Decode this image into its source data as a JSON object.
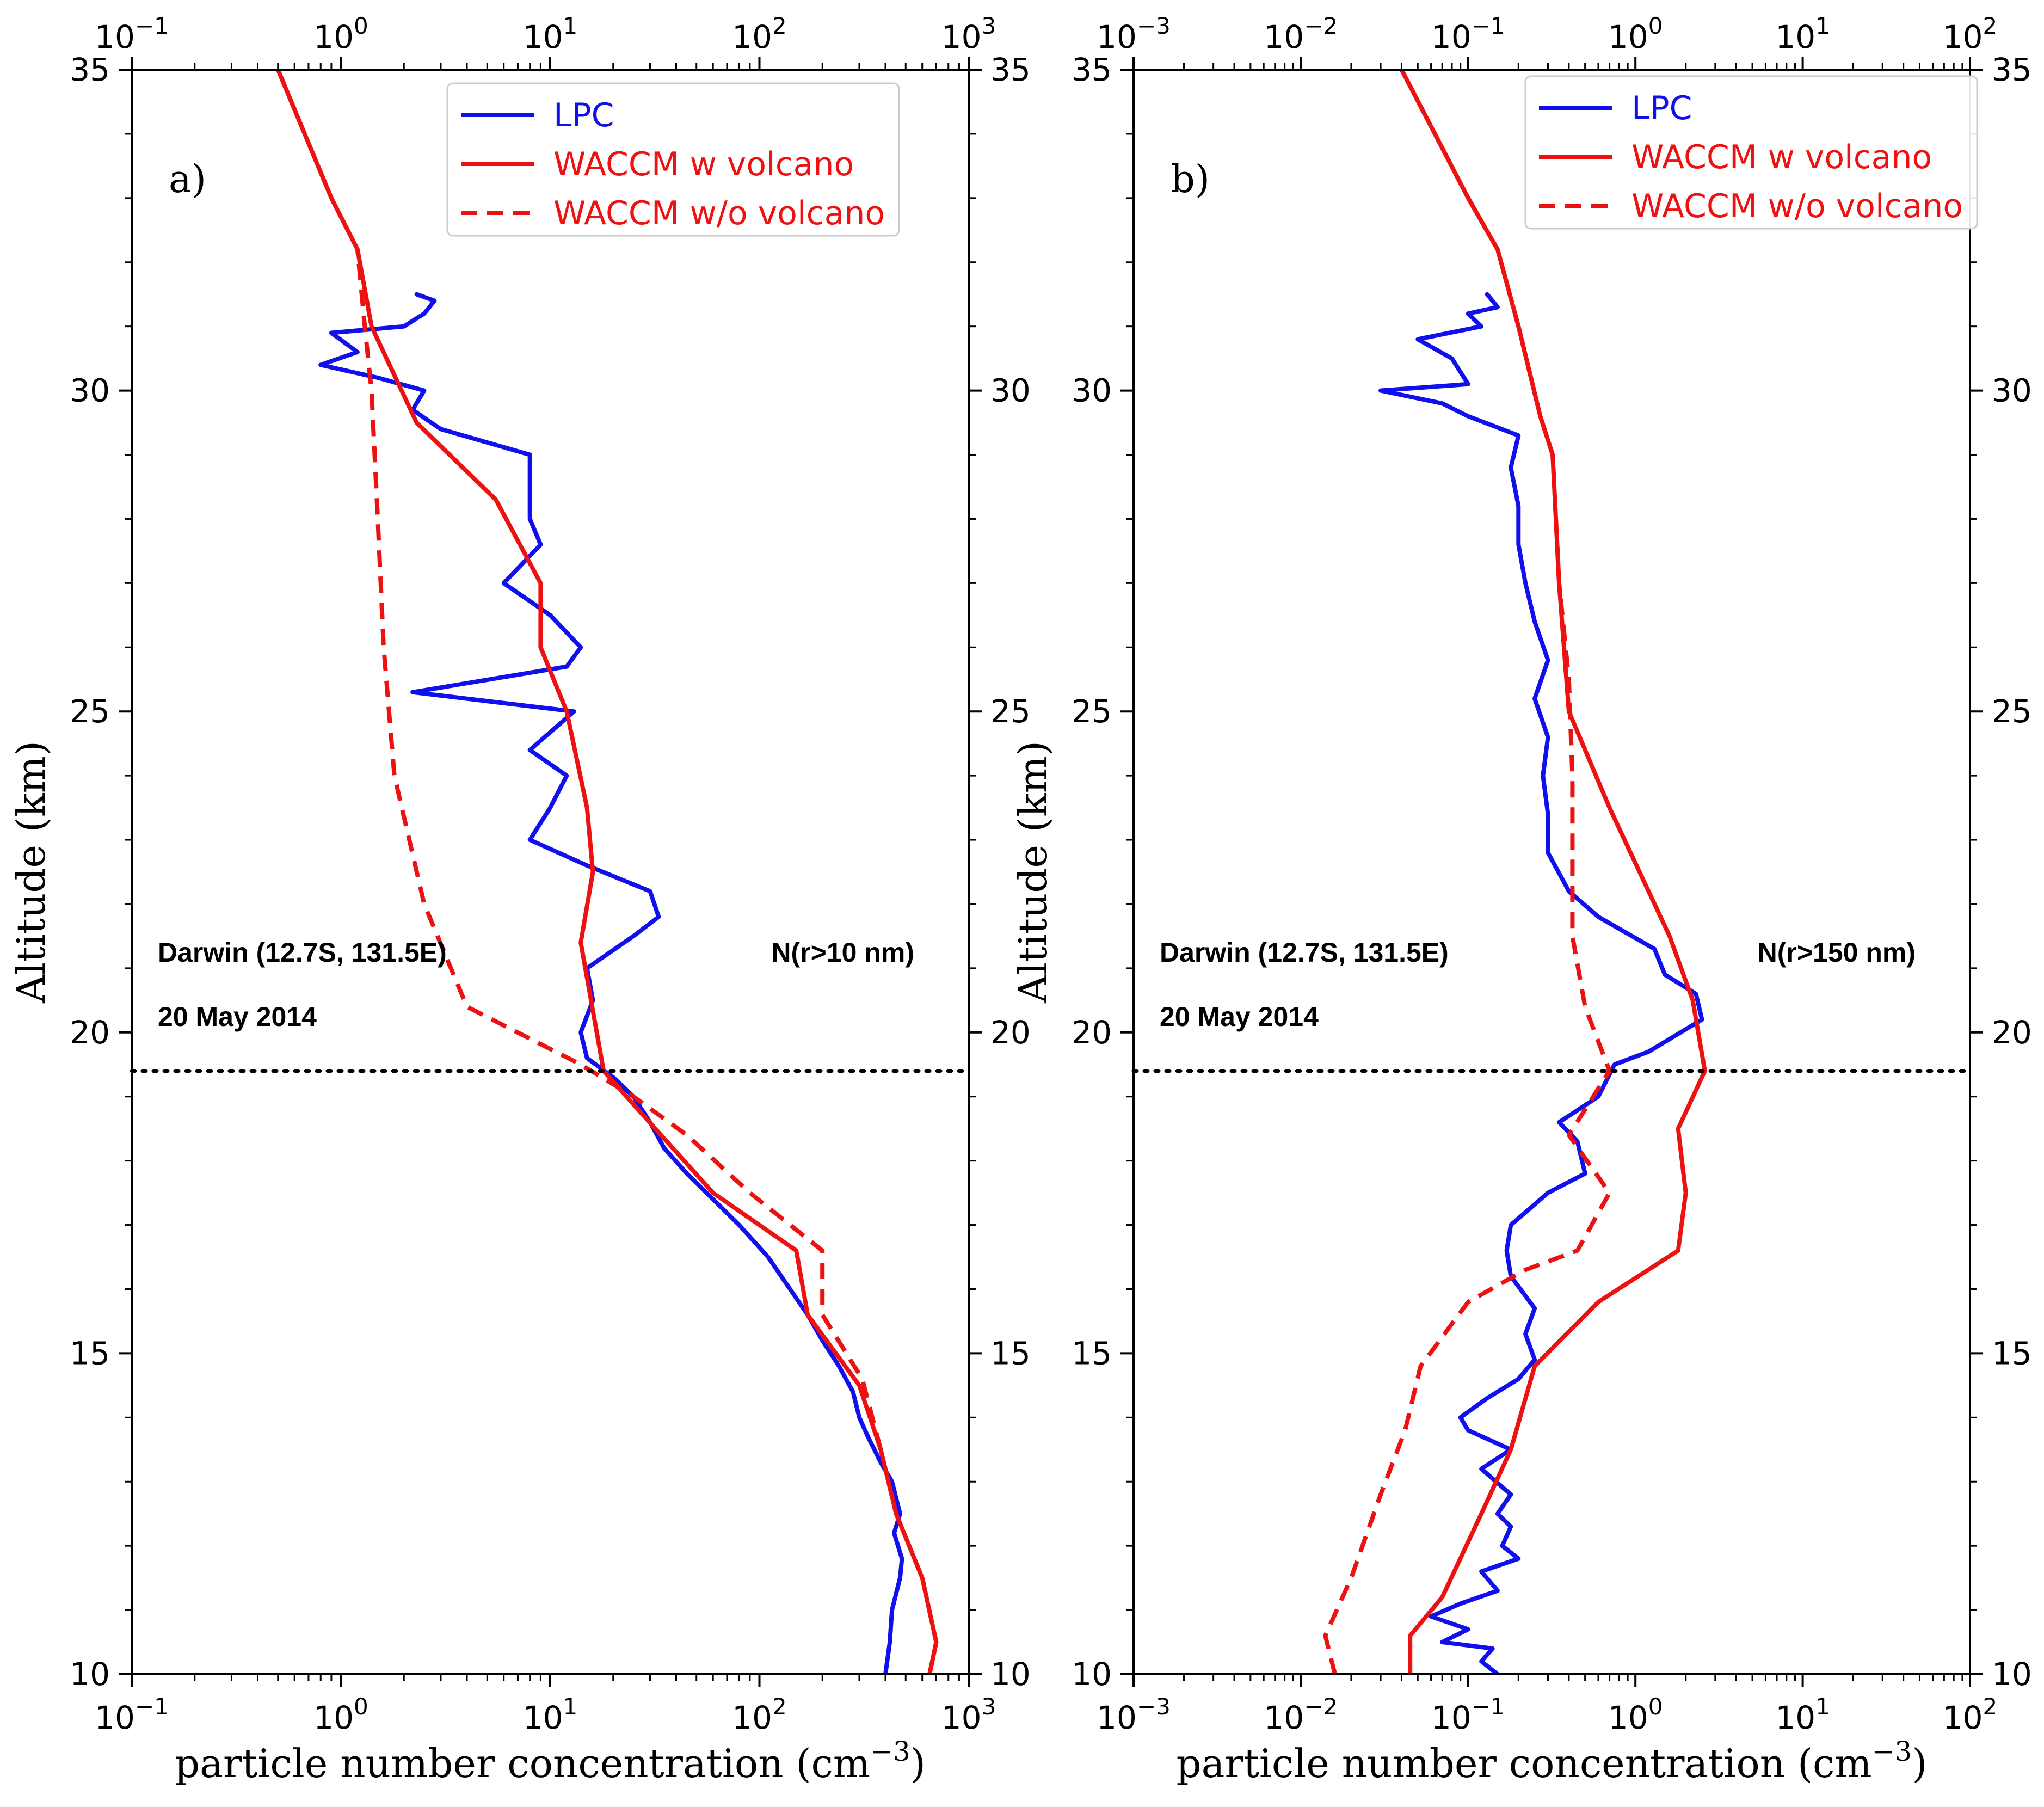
{
  "chart_data": [
    {
      "type": "line",
      "panel": "a)",
      "xscale": "log",
      "xlim": [
        0.1,
        1000
      ],
      "ylim": [
        10,
        35
      ],
      "x_ticks": [
        0.1,
        1,
        10,
        100,
        1000
      ],
      "x_tick_labels": [
        [
          "10",
          "−1"
        ],
        [
          "10",
          "0"
        ],
        [
          "10",
          "1"
        ],
        [
          "10",
          "2"
        ],
        [
          "10",
          "3"
        ]
      ],
      "y_ticks": [
        10,
        15,
        20,
        25,
        30,
        35
      ],
      "y_tick_labels": [
        "10",
        "15",
        "20",
        "25",
        "30",
        "35"
      ],
      "xlabel": "particle number concentration (cm",
      "xlabel_sup": "−3",
      "xlabel_end": ")",
      "ylabel": "Altitude (km)",
      "annotation_left": "Darwin (12.7S, 131.5E)",
      "annotation_date": "20 May 2014",
      "annotation_right": "N(r>10 nm)",
      "tropopause_altitude": 19.4,
      "legend": [
        "LPC",
        "WACCM w volcano",
        "WACCM w/o volcano"
      ],
      "series": [
        {
          "name": "LPC",
          "color": "#1010ee",
          "style": "solid",
          "points": [
            [
              400,
              10
            ],
            [
              420,
              10.5
            ],
            [
              430,
              11
            ],
            [
              470,
              11.5
            ],
            [
              480,
              11.8
            ],
            [
              440,
              12.2
            ],
            [
              470,
              12.5
            ],
            [
              430,
              13
            ],
            [
              380,
              13.3
            ],
            [
              330,
              13.7
            ],
            [
              300,
              14
            ],
            [
              280,
              14.4
            ],
            [
              240,
              14.8
            ],
            [
              200,
              15.2
            ],
            [
              170,
              15.6
            ],
            [
              140,
              16
            ],
            [
              110,
              16.5
            ],
            [
              80,
              17
            ],
            [
              60,
              17.4
            ],
            [
              45,
              17.8
            ],
            [
              35,
              18.2
            ],
            [
              30,
              18.6
            ],
            [
              25,
              19
            ],
            [
              20,
              19.3
            ],
            [
              15,
              19.6
            ],
            [
              14,
              20
            ],
            [
              16,
              20.5
            ],
            [
              15,
              21
            ],
            [
              25,
              21.5
            ],
            [
              33,
              21.8
            ],
            [
              30,
              22.2
            ],
            [
              15,
              22.6
            ],
            [
              8,
              23
            ],
            [
              10,
              23.5
            ],
            [
              12,
              24
            ],
            [
              8,
              24.4
            ],
            [
              13,
              25
            ],
            [
              2.2,
              25.3
            ],
            [
              12,
              25.7
            ],
            [
              14,
              26
            ],
            [
              10,
              26.5
            ],
            [
              6,
              27
            ],
            [
              9,
              27.6
            ],
            [
              8,
              28
            ],
            [
              8,
              28.5
            ],
            [
              8,
              29
            ],
            [
              3,
              29.4
            ],
            [
              2.2,
              29.7
            ],
            [
              2.5,
              30
            ],
            [
              1.5,
              30.2
            ],
            [
              0.8,
              30.4
            ],
            [
              1.2,
              30.6
            ],
            [
              0.9,
              30.9
            ],
            [
              2,
              31
            ],
            [
              2.5,
              31.2
            ],
            [
              2.8,
              31.4
            ],
            [
              2.3,
              31.5
            ]
          ]
        },
        {
          "name": "WACCM w volcano",
          "color": "#ee1111",
          "style": "solid",
          "points": [
            [
              650,
              10
            ],
            [
              700,
              10.5
            ],
            [
              600,
              11.5
            ],
            [
              450,
              12.5
            ],
            [
              380,
              13.5
            ],
            [
              300,
              14.5
            ],
            [
              170,
              15.6
            ],
            [
              150,
              16.6
            ],
            [
              60,
              17.5
            ],
            [
              28,
              18.7
            ],
            [
              18,
              19.4
            ],
            [
              14,
              21.4
            ],
            [
              16,
              22.5
            ],
            [
              15,
              23.5
            ],
            [
              12,
              25
            ],
            [
              9,
              26
            ],
            [
              9,
              27
            ],
            [
              5.5,
              28.3
            ],
            [
              2.3,
              29.5
            ],
            [
              1.4,
              31
            ],
            [
              1.2,
              32.2
            ],
            [
              0.9,
              33
            ],
            [
              0.5,
              35
            ]
          ]
        },
        {
          "name": "WACCM w/o volcano",
          "color": "#ee1111",
          "style": "dashed",
          "points": [
            [
              650,
              10
            ],
            [
              700,
              10.5
            ],
            [
              600,
              11.5
            ],
            [
              450,
              12.5
            ],
            [
              380,
              13.5
            ],
            [
              310,
              14.6
            ],
            [
              200,
              15.6
            ],
            [
              200,
              16.6
            ],
            [
              90,
              17.5
            ],
            [
              45,
              18.4
            ],
            [
              25,
              19
            ],
            [
              14,
              19.5
            ],
            [
              4,
              20.4
            ],
            [
              2.5,
              22
            ],
            [
              1.8,
              24
            ],
            [
              1.6,
              26
            ],
            [
              1.5,
              28
            ],
            [
              1.4,
              30
            ],
            [
              1.3,
              31
            ],
            [
              1.2,
              32.2
            ],
            [
              0.9,
              33
            ],
            [
              0.5,
              35
            ]
          ]
        }
      ]
    },
    {
      "type": "line",
      "panel": "b)",
      "xscale": "log",
      "xlim": [
        0.001,
        100
      ],
      "ylim": [
        10,
        35
      ],
      "x_ticks": [
        0.001,
        0.01,
        0.1,
        1,
        10,
        100
      ],
      "x_tick_labels": [
        [
          "10",
          "−3"
        ],
        [
          "10",
          "−2"
        ],
        [
          "10",
          "−1"
        ],
        [
          "10",
          "0"
        ],
        [
          "10",
          "1"
        ],
        [
          "10",
          "2"
        ]
      ],
      "y_ticks": [
        10,
        15,
        20,
        25,
        30,
        35
      ],
      "y_tick_labels": [
        "10",
        "15",
        "20",
        "25",
        "30",
        "35"
      ],
      "xlabel": "particle number concentration (cm",
      "xlabel_sup": "−3",
      "xlabel_end": ")",
      "ylabel": "Altitude (km)",
      "annotation_left": "Darwin (12.7S, 131.5E)",
      "annotation_date": "20 May 2014",
      "annotation_right": "N(r>150 nm)",
      "tropopause_altitude": 19.4,
      "legend": [
        "LPC",
        "WACCM w volcano",
        "WACCM w/o volcano"
      ],
      "series": [
        {
          "name": "LPC",
          "color": "#1010ee",
          "style": "solid",
          "points": [
            [
              0.15,
              10
            ],
            [
              0.12,
              10.2
            ],
            [
              0.14,
              10.4
            ],
            [
              0.07,
              10.5
            ],
            [
              0.1,
              10.7
            ],
            [
              0.06,
              10.9
            ],
            [
              0.09,
              11.1
            ],
            [
              0.15,
              11.3
            ],
            [
              0.12,
              11.6
            ],
            [
              0.2,
              11.8
            ],
            [
              0.16,
              12
            ],
            [
              0.18,
              12.3
            ],
            [
              0.15,
              12.5
            ],
            [
              0.18,
              12.8
            ],
            [
              0.12,
              13.2
            ],
            [
              0.18,
              13.5
            ],
            [
              0.1,
              13.8
            ],
            [
              0.09,
              14
            ],
            [
              0.13,
              14.3
            ],
            [
              0.2,
              14.6
            ],
            [
              0.25,
              14.9
            ],
            [
              0.22,
              15.3
            ],
            [
              0.25,
              15.7
            ],
            [
              0.18,
              16.2
            ],
            [
              0.17,
              16.6
            ],
            [
              0.18,
              17
            ],
            [
              0.3,
              17.5
            ],
            [
              0.5,
              17.8
            ],
            [
              0.45,
              18.3
            ],
            [
              0.35,
              18.6
            ],
            [
              0.6,
              19
            ],
            [
              0.75,
              19.5
            ],
            [
              1.2,
              19.7
            ],
            [
              2.5,
              20.2
            ],
            [
              2.3,
              20.6
            ],
            [
              1.5,
              20.9
            ],
            [
              1.3,
              21.3
            ],
            [
              0.6,
              21.8
            ],
            [
              0.4,
              22.2
            ],
            [
              0.3,
              22.8
            ],
            [
              0.3,
              23.4
            ],
            [
              0.28,
              24
            ],
            [
              0.3,
              24.6
            ],
            [
              0.25,
              25.2
            ],
            [
              0.3,
              25.8
            ],
            [
              0.25,
              26.4
            ],
            [
              0.22,
              27
            ],
            [
              0.2,
              27.6
            ],
            [
              0.2,
              28.2
            ],
            [
              0.18,
              28.8
            ],
            [
              0.2,
              29.3
            ],
            [
              0.1,
              29.6
            ],
            [
              0.07,
              29.8
            ],
            [
              0.03,
              30
            ],
            [
              0.1,
              30.1
            ],
            [
              0.08,
              30.5
            ],
            [
              0.05,
              30.8
            ],
            [
              0.12,
              31
            ],
            [
              0.1,
              31.2
            ],
            [
              0.15,
              31.3
            ],
            [
              0.13,
              31.5
            ]
          ]
        },
        {
          "name": "WACCM w volcano",
          "color": "#ee1111",
          "style": "solid",
          "points": [
            [
              0.045,
              10
            ],
            [
              0.045,
              10.6
            ],
            [
              0.07,
              11.2
            ],
            [
              0.12,
              12.5
            ],
            [
              0.18,
              13.5
            ],
            [
              0.25,
              14.8
            ],
            [
              0.6,
              15.8
            ],
            [
              1.8,
              16.6
            ],
            [
              2.0,
              17.5
            ],
            [
              1.8,
              18.5
            ],
            [
              2.6,
              19.4
            ],
            [
              2.2,
              20.5
            ],
            [
              1.6,
              21.5
            ],
            [
              0.7,
              23.5
            ],
            [
              0.4,
              25
            ],
            [
              0.35,
              27
            ],
            [
              0.32,
              29
            ],
            [
              0.27,
              29.6
            ],
            [
              0.2,
              31
            ],
            [
              0.15,
              32.2
            ],
            [
              0.1,
              33
            ],
            [
              0.04,
              35
            ]
          ]
        },
        {
          "name": "WACCM w/o volcano",
          "color": "#ee1111",
          "style": "dashed",
          "points": [
            [
              0.016,
              10
            ],
            [
              0.014,
              10.6
            ],
            [
              0.02,
              11.5
            ],
            [
              0.03,
              12.8
            ],
            [
              0.042,
              13.8
            ],
            [
              0.052,
              14.8
            ],
            [
              0.1,
              15.8
            ],
            [
              0.22,
              16.3
            ],
            [
              0.45,
              16.6
            ],
            [
              0.7,
              17.5
            ],
            [
              0.4,
              18.4
            ],
            [
              0.7,
              19.4
            ],
            [
              0.5,
              20.4
            ],
            [
              0.42,
              21.5
            ],
            [
              0.42,
              22.5
            ],
            [
              0.42,
              24
            ],
            [
              0.4,
              25.5
            ],
            [
              0.35,
              27
            ],
            [
              0.32,
              29
            ],
            [
              0.27,
              29.6
            ],
            [
              0.2,
              31
            ],
            [
              0.15,
              32.2
            ],
            [
              0.1,
              33
            ],
            [
              0.04,
              35
            ]
          ]
        }
      ]
    }
  ]
}
